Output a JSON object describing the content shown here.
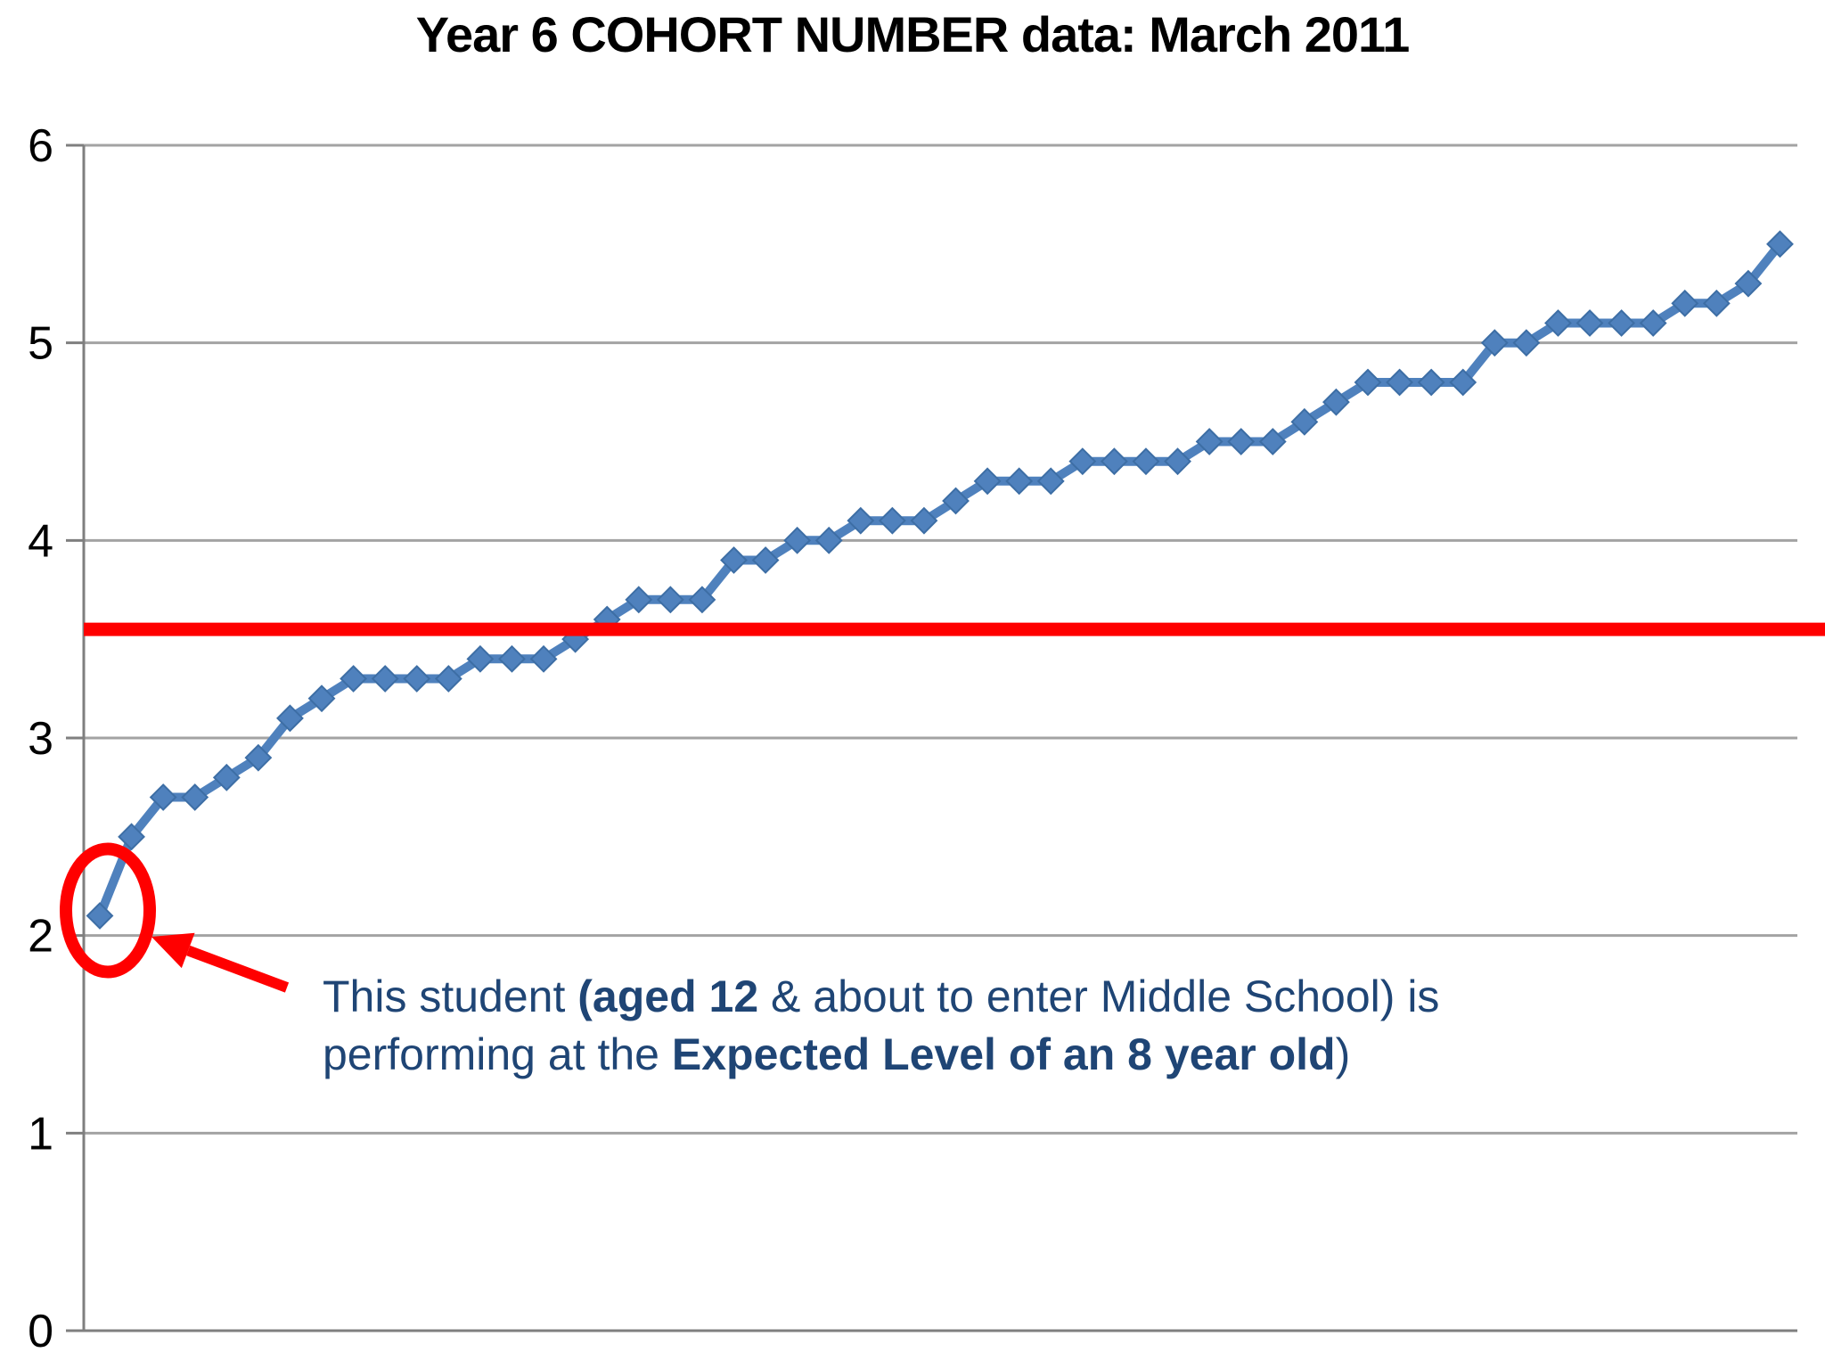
{
  "title": "Year 6 COHORT NUMBER data: March 2011",
  "chart_data": {
    "type": "line",
    "title": "Year 6 COHORT NUMBER data: March 2011",
    "xlabel": "",
    "ylabel": "",
    "n_points": 54,
    "values": [
      2.1,
      2.5,
      2.7,
      2.7,
      2.8,
      2.9,
      3.1,
      3.2,
      3.3,
      3.3,
      3.3,
      3.3,
      3.4,
      3.4,
      3.4,
      3.5,
      3.6,
      3.7,
      3.7,
      3.7,
      3.9,
      3.9,
      4.0,
      4.0,
      4.1,
      4.1,
      4.1,
      4.2,
      4.3,
      4.3,
      4.3,
      4.4,
      4.4,
      4.4,
      4.4,
      4.5,
      4.5,
      4.5,
      4.6,
      4.7,
      4.8,
      4.8,
      4.8,
      4.8,
      5.0,
      5.0,
      5.1,
      5.1,
      5.1,
      5.1,
      5.2,
      5.2,
      5.3,
      5.5
    ],
    "ylim": [
      0,
      6
    ],
    "yticks": [
      "0",
      "1",
      "2",
      "3",
      "4",
      "5",
      "6"
    ],
    "x_axis_labels": "none",
    "grid": "horizontal",
    "legend": "none",
    "marker": "diamond",
    "series_color": "#4F81BD",
    "marker_edge_color": "#3D6EA5",
    "reference_line": {
      "value": 3.55,
      "color": "#FF0000"
    },
    "highlight": {
      "circled_point_index": 0,
      "circle_color": "#FF0000",
      "arrow": true
    }
  },
  "annotation": {
    "color": "#1F4575",
    "lines": [
      [
        {
          "text": "This student ",
          "bold": false
        },
        {
          "text": "(aged 12",
          "bold": true
        },
        {
          "text": " & about to enter Middle School) is",
          "bold": false
        }
      ],
      [
        {
          "text": "performing at the ",
          "bold": false
        },
        {
          "text": "Expected Level of an 8 year old",
          "bold": true
        },
        {
          "text": ")",
          "bold": false
        }
      ]
    ]
  },
  "colors": {
    "gridline": "#A3A3A3",
    "axis": "#7F7F7F",
    "tick_label": "#000000",
    "background": "#FFFFFF"
  }
}
